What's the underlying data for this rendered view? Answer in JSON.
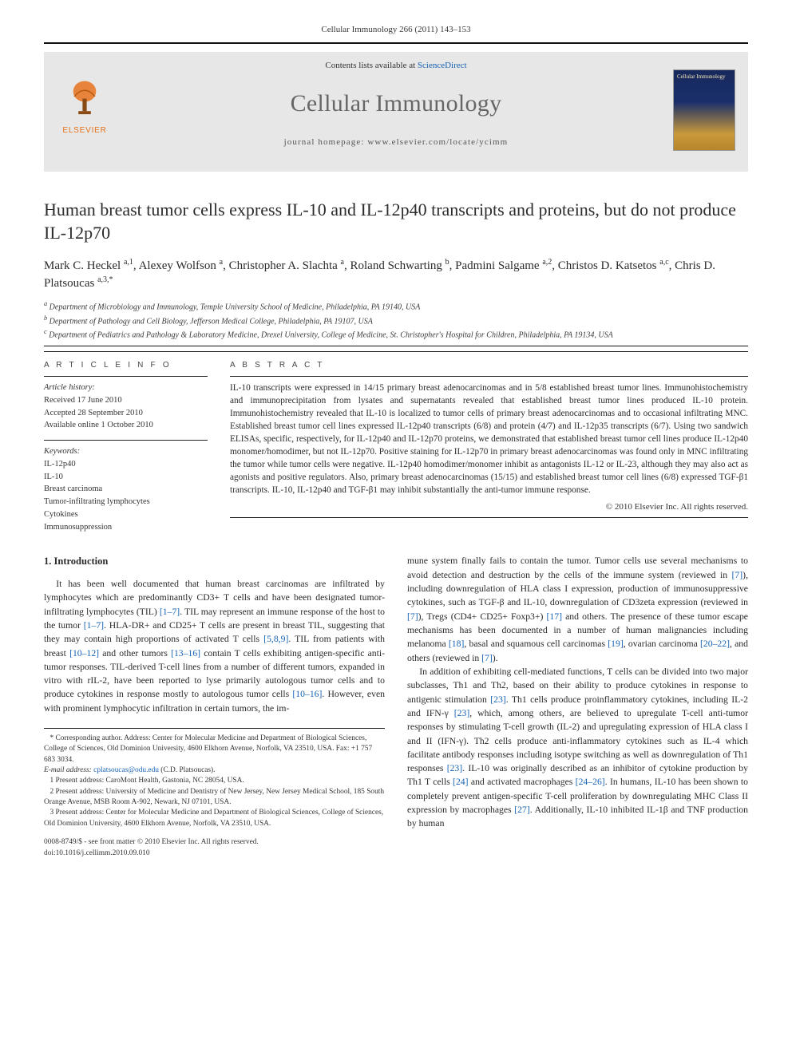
{
  "running_head": "Cellular Immunology 266 (2011) 143–153",
  "masthead": {
    "contents_prefix": "Contents lists available at ",
    "sd_link": "ScienceDirect",
    "journal_name": "Cellular Immunology",
    "homepage_prefix": "journal homepage: ",
    "homepage_url": "www.elsevier.com/locate/ycimm",
    "elsevier_word": "ELSEVIER",
    "cover_text": "Cellular Immunology"
  },
  "title": "Human breast tumor cells express IL-10 and IL-12p40 transcripts and proteins, but do not produce IL-12p70",
  "authors_html": "Mark C. Heckel <sup>a,1</sup>, Alexey Wolfson <sup>a</sup>, Christopher A. Slachta <sup>a</sup>, Roland Schwarting <sup>b</sup>, Padmini Salgame <sup>a,2</sup>, Christos D. Katsetos <sup>a,c</sup>, Chris D. Platsoucas <sup>a,3,*</sup>",
  "affiliations": [
    "a Department of Microbiology and Immunology, Temple University School of Medicine, Philadelphia, PA 19140, USA",
    "b Department of Pathology and Cell Biology, Jefferson Medical College, Philadelphia, PA 19107, USA",
    "c Department of Pediatrics and Pathology & Laboratory Medicine, Drexel University, College of Medicine, St. Christopher's Hospital for Children, Philadelphia, PA 19134, USA"
  ],
  "labels": {
    "article_info": "A R T I C L E   I N F O",
    "abstract": "A B S T R A C T",
    "history_header": "Article history:",
    "keywords_header": "Keywords:"
  },
  "history": [
    "Received 17 June 2010",
    "Accepted 28 September 2010",
    "Available online 1 October 2010"
  ],
  "keywords": [
    "IL-12p40",
    "IL-10",
    "Breast carcinoma",
    "Tumor-infiltrating lymphocytes",
    "Cytokines",
    "Immunosuppression"
  ],
  "abstract": "IL-10 transcripts were expressed in 14/15 primary breast adenocarcinomas and in 5/8 established breast tumor lines. Immunohistochemistry and immunoprecipitation from lysates and supernatants revealed that established breast tumor lines produced IL-10 protein. Immunohistochemistry revealed that IL-10 is localized to tumor cells of primary breast adenocarcinomas and to occasional infiltrating MNC. Established breast tumor cell lines expressed IL-12p40 transcripts (6/8) and protein (4/7) and IL-12p35 transcripts (6/7). Using two sandwich ELISAs, specific, respectively, for IL-12p40 and IL-12p70 proteins, we demonstrated that established breast tumor cell lines produce IL-12p40 monomer/homodimer, but not IL-12p70. Positive staining for IL-12p70 in primary breast adenocarcinomas was found only in MNC infiltrating the tumor while tumor cells were negative. IL-12p40 homodimer/monomer inhibit as antagonists IL-12 or IL-23, although they may also act as agonists and positive regulators. Also, primary breast adenocarcinomas (15/15) and established breast tumor cell lines (6/8) expressed TGF-β1 transcripts. IL-10, IL-12p40 and TGF-β1 may inhibit substantially the anti-tumor immune response.",
  "copyright": "© 2010 Elsevier Inc. All rights reserved.",
  "intro_heading": "1. Introduction",
  "intro_paragraphs": [
    "It has been well documented that human breast carcinomas are infiltrated by lymphocytes which are predominantly CD3+ T cells and have been designated tumor-infiltrating lymphocytes (TIL) [1–7]. TIL may represent an immune response of the host to the tumor [1–7]. HLA-DR+ and CD25+ T cells are present in breast TIL, suggesting that they may contain high proportions of activated T cells [5,8,9]. TIL from patients with breast [10–12] and other tumors [13–16] contain T cells exhibiting antigen-specific anti-tumor responses. TIL-derived T-cell lines from a number of different tumors, expanded in vitro with rIL-2, have been reported to lyse primarily autologous tumor cells and to produce cytokines in response mostly to autologous tumor cells [10–16]. However, even with prominent lymphocytic infiltration in certain tumors, the im-",
    "mune system finally fails to contain the tumor. Tumor cells use several mechanisms to avoid detection and destruction by the cells of the immune system (reviewed in [7]), including downregulation of HLA class I expression, production of immunosuppressive cytokines, such as TGF-β and IL-10, downregulation of CD3zeta expression (reviewed in [7]), Tregs (CD4+ CD25+ Foxp3+) [17] and others. The presence of these tumor escape mechanisms has been documented in a number of human malignancies including melanoma [18], basal and squamous cell carcinomas [19], ovarian carcinoma [20–22], and others (reviewed in [7]).",
    "In addition of exhibiting cell-mediated functions, T cells can be divided into two major subclasses, Th1 and Th2, based on their ability to produce cytokines in response to antigenic stimulation [23]. Th1 cells produce proinflammatory cytokines, including IL-2 and IFN-γ [23], which, among others, are believed to upregulate T-cell anti-tumor responses by stimulating T-cell growth (IL-2) and upregulating expression of HLA class I and II (IFN-γ). Th2 cells produce anti-inflammatory cytokines such as IL-4 which facilitate antibody responses including isotype switching as well as downregulation of Th1 responses [23]. IL-10 was originally described as an inhibitor of cytokine production by Th1 T cells [24] and activated macrophages [24–26]. In humans, IL-10 has been shown to completely prevent antigen-specific T-cell proliferation by downregulating MHC Class II expression by macrophages [27]. Additionally, IL-10 inhibited IL-1β and TNF production by human"
  ],
  "footnotes": {
    "corr": "* Corresponding author. Address: Center for Molecular Medicine and Department of Biological Sciences, College of Sciences, Old Dominion University, 4600 Elkhorn Avenue, Norfolk, VA 23510, USA. Fax: +1 757 683 3034.",
    "email_label": "E-mail address: ",
    "email": "cplatsoucas@odu.edu",
    "email_tail": " (C.D. Platsoucas).",
    "n1": "1  Present address: CaroMont Health, Gastonia, NC 28054, USA.",
    "n2": "2  Present address: University of Medicine and Dentistry of New Jersey, New Jersey Medical School, 185 South Orange Avenue, MSB Room A-902, Newark, NJ 07101, USA.",
    "n3": "3  Present address: Center for Molecular Medicine and Department of Biological Sciences, College of Sciences, Old Dominion University, 4600 Elkhorn Avenue, Norfolk, VA 23510, USA."
  },
  "page_footer": {
    "left": "0008-8749/$ - see front matter © 2010 Elsevier Inc. All rights reserved.",
    "doi": "doi:10.1016/j.cellimm.2010.09.010"
  },
  "colors": {
    "link": "#1763b5",
    "elsevier_orange": "#e6711b",
    "masthead_bg": "#e7e7e7",
    "text": "#2a2a2a"
  }
}
